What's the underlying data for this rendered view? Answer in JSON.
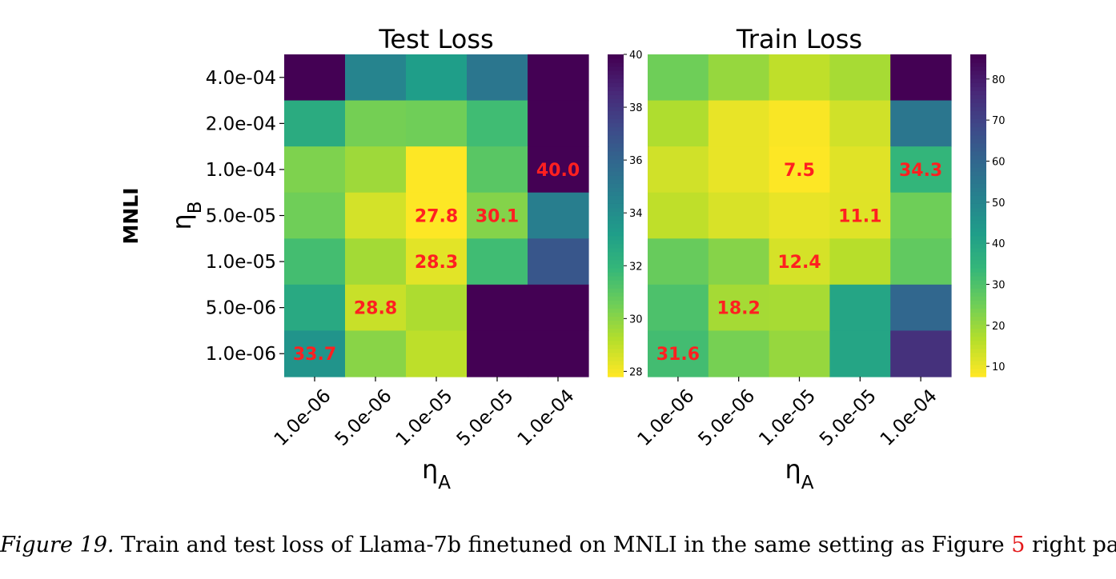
{
  "row_label": "MNLI",
  "chart_data": [
    {
      "type": "heatmap",
      "title": "Test Loss",
      "xlabel": "η_A",
      "ylabel": "η_B",
      "x": [
        "1.0e-06",
        "5.0e-06",
        "1.0e-05",
        "5.0e-05",
        "1.0e-04"
      ],
      "y": [
        "4.0e-04",
        "2.0e-04",
        "1.0e-04",
        "5.0e-05",
        "1.0e-05",
        "5.0e-06",
        "1.0e-06"
      ],
      "values": [
        [
          40,
          34.5,
          33.2,
          35.2,
          40
        ],
        [
          32.5,
          30.4,
          30.5,
          31.6,
          40
        ],
        [
          30.2,
          29.6,
          27.8,
          31.0,
          40.0
        ],
        [
          30.5,
          28.6,
          27.8,
          30.1,
          34.8
        ],
        [
          31.5,
          29.5,
          28.3,
          31.6,
          36.7
        ],
        [
          32.6,
          28.8,
          29.3,
          40,
          40
        ],
        [
          33.7,
          30.0,
          29.0,
          40,
          40
        ]
      ],
      "annotations": [
        {
          "row": 2,
          "col": 4,
          "text": "40.0"
        },
        {
          "row": 3,
          "col": 2,
          "text": "27.8"
        },
        {
          "row": 3,
          "col": 3,
          "text": "30.1"
        },
        {
          "row": 4,
          "col": 2,
          "text": "28.3"
        },
        {
          "row": 5,
          "col": 1,
          "text": "28.8"
        },
        {
          "row": 6,
          "col": 0,
          "text": "33.7"
        }
      ],
      "colorbar": {
        "colormap": "viridis_r",
        "min": 27.8,
        "max": 40,
        "ticks": [
          28,
          30,
          32,
          34,
          36,
          38,
          40
        ]
      }
    },
    {
      "type": "heatmap",
      "title": "Train Loss",
      "xlabel": "η_A",
      "ylabel": "",
      "x": [
        "1.0e-06",
        "5.0e-06",
        "1.0e-05",
        "5.0e-05",
        "1.0e-04"
      ],
      "y": [
        "4.0e-04",
        "2.0e-04",
        "1.0e-04",
        "5.0e-05",
        "1.0e-05",
        "5.0e-06",
        "1.0e-06"
      ],
      "values": [
        [
          25,
          20,
          15,
          18,
          86
        ],
        [
          17,
          10,
          8,
          13,
          55
        ],
        [
          13,
          10,
          7.5,
          11,
          34.3
        ],
        [
          15,
          12,
          10,
          11.1,
          25
        ],
        [
          26,
          22,
          12.4,
          16,
          27
        ],
        [
          30,
          18.2,
          18,
          40,
          60
        ],
        [
          31.6,
          24,
          20,
          40,
          75
        ]
      ],
      "annotations": [
        {
          "row": 2,
          "col": 2,
          "text": "7.5"
        },
        {
          "row": 2,
          "col": 4,
          "text": "34.3"
        },
        {
          "row": 3,
          "col": 3,
          "text": "11.1"
        },
        {
          "row": 4,
          "col": 2,
          "text": "12.4"
        },
        {
          "row": 5,
          "col": 1,
          "text": "18.2"
        },
        {
          "row": 6,
          "col": 0,
          "text": "31.6"
        }
      ],
      "colorbar": {
        "colormap": "viridis_r",
        "min": 7.5,
        "max": 86,
        "ticks": [
          10,
          20,
          30,
          40,
          50,
          60,
          70,
          80
        ]
      }
    }
  ],
  "caption": {
    "label": "Figure 19.",
    "text_before": " Train and test loss of Llama-7b finetuned on MNLI in the same setting as Figure ",
    "ref": "5",
    "text_after": " right panel."
  }
}
